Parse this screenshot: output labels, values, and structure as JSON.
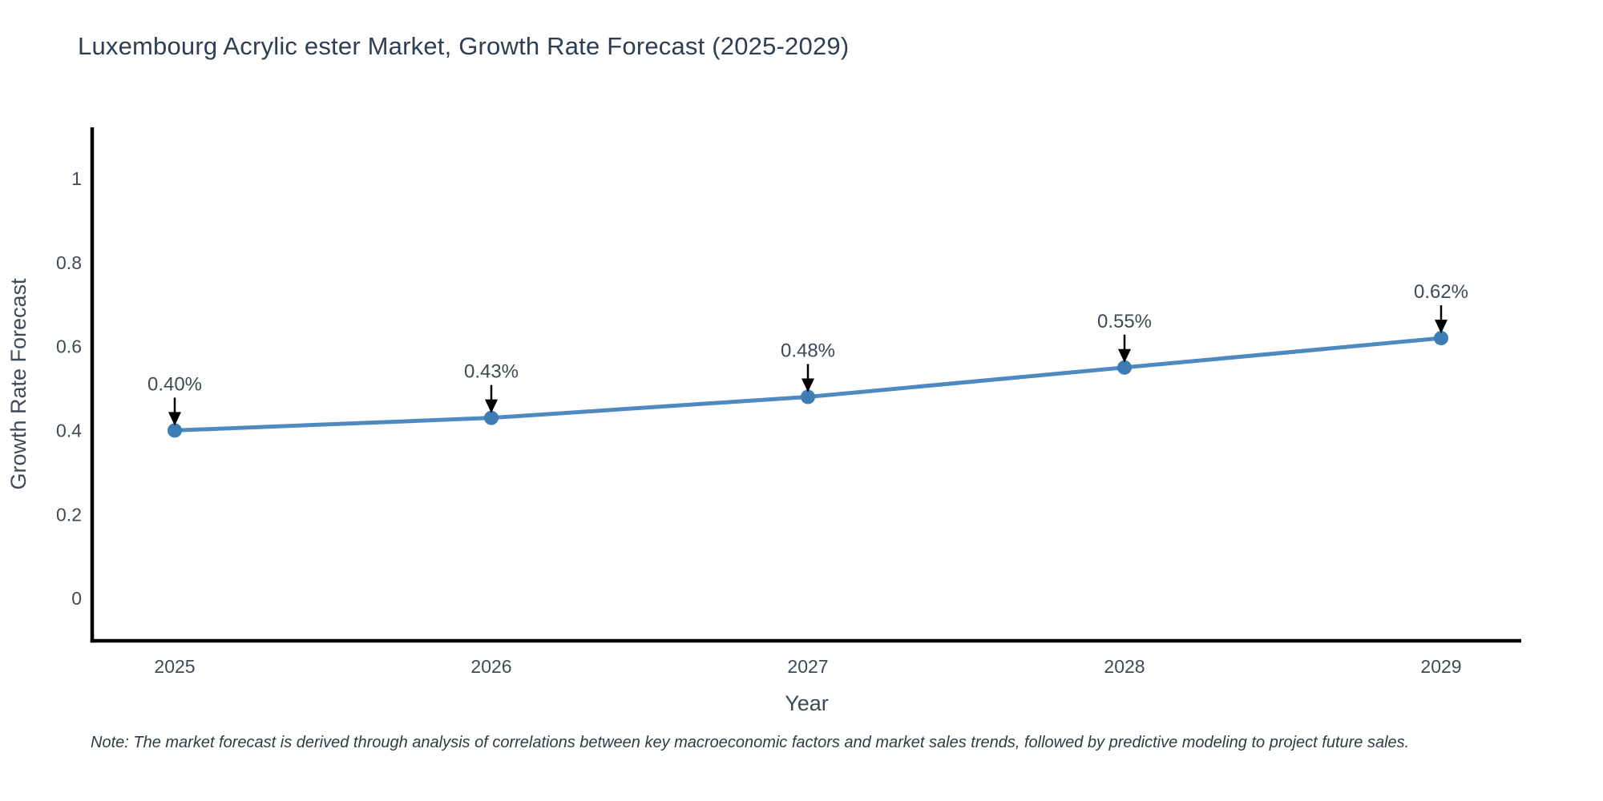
{
  "chart_data": {
    "type": "line",
    "title": "Luxembourg Acrylic ester Market, Growth Rate Forecast (2025-2029)",
    "categories": [
      "2025",
      "2026",
      "2027",
      "2028",
      "2029"
    ],
    "values": [
      0.4,
      0.43,
      0.48,
      0.55,
      0.62
    ],
    "point_labels": [
      "0.40%",
      "0.43%",
      "0.48%",
      "0.55%",
      "0.62%"
    ],
    "xlabel": "Year",
    "ylabel": "Growth Rate Forecast",
    "yticks": [
      0,
      0.2,
      0.4,
      0.6,
      0.8,
      1
    ],
    "ytick_labels": [
      "0",
      "0.2",
      "0.4",
      "0.6",
      "0.8",
      "1"
    ],
    "ylim": [
      -0.1,
      1.12
    ],
    "grid": false,
    "legend": "none",
    "annotation_style": "value label above point with downward black arrow",
    "colors": {
      "line": "#4e8ac0",
      "marker": "#3d7cb5",
      "axis": "#000000",
      "tick_text": "#3e4a57",
      "title_text": "#2e3f54",
      "arrow": "#000000"
    },
    "note": "Note: The market forecast is derived through analysis of correlations between key macroeconomic factors and market sales trends, followed by predictive modeling to project future sales."
  }
}
